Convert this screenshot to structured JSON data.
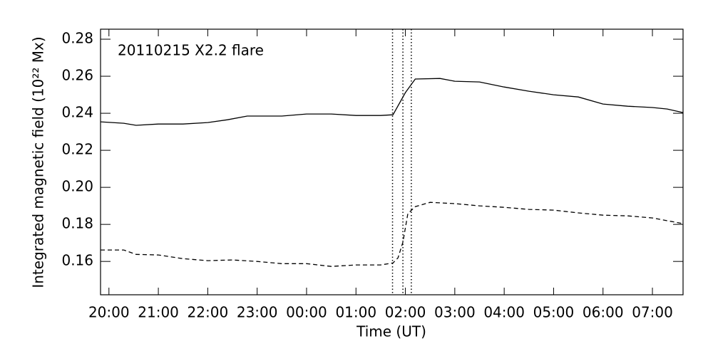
{
  "chart_data": {
    "type": "line",
    "annotation": "20110215 X2.2 flare",
    "xlabel": "Time (UT)",
    "ylabel": "Integrated magnetic field (10²² Mx)",
    "xlim": [
      -0.17,
      11.62
    ],
    "xticks": [
      {
        "value": 0,
        "label": "20:00"
      },
      {
        "value": 1,
        "label": "21:00"
      },
      {
        "value": 2,
        "label": "22:00"
      },
      {
        "value": 3,
        "label": "23:00"
      },
      {
        "value": 4,
        "label": "00:00"
      },
      {
        "value": 5,
        "label": "01:00"
      },
      {
        "value": 6,
        "label": "02:00"
      },
      {
        "value": 7,
        "label": "03:00"
      },
      {
        "value": 8,
        "label": "04:00"
      },
      {
        "value": 9,
        "label": "05:00"
      },
      {
        "value": 10,
        "label": "06:00"
      },
      {
        "value": 11,
        "label": "07:00"
      }
    ],
    "ylim": [
      0.142,
      0.2854
    ],
    "yticks": [
      {
        "value": 0.16,
        "label": "0.16"
      },
      {
        "value": 0.18,
        "label": "0.18"
      },
      {
        "value": 0.2,
        "label": "0.20"
      },
      {
        "value": 0.22,
        "label": "0.22"
      },
      {
        "value": 0.24,
        "label": "0.24"
      },
      {
        "value": 0.26,
        "label": "0.26"
      },
      {
        "value": 0.28,
        "label": "0.28"
      }
    ],
    "vlines": [
      5.74,
      5.95,
      6.12
    ],
    "series": [
      {
        "color": "#000000",
        "linestyle": "solid",
        "x": [
          -0.17,
          0.3,
          0.55,
          1.0,
          1.5,
          2.0,
          2.4,
          2.8,
          3.5,
          4.0,
          4.5,
          5.0,
          5.5,
          5.75,
          6.0,
          6.2,
          6.7,
          7.0,
          7.5,
          8.0,
          8.5,
          9.0,
          9.5,
          10.0,
          10.5,
          11.0,
          11.3,
          11.62
        ],
        "values": [
          0.2354,
          0.2346,
          0.2335,
          0.2342,
          0.2342,
          0.235,
          0.2365,
          0.2385,
          0.2385,
          0.2396,
          0.2396,
          0.2388,
          0.2388,
          0.2392,
          0.2512,
          0.2585,
          0.2588,
          0.2573,
          0.2569,
          0.2542,
          0.2519,
          0.25,
          0.2488,
          0.245,
          0.2438,
          0.2431,
          0.2423,
          0.2404
        ]
      },
      {
        "color": "#000000",
        "linestyle": "dashed",
        "x": [
          -0.17,
          0.3,
          0.55,
          1.0,
          1.5,
          2.0,
          2.5,
          3.0,
          3.5,
          4.0,
          4.5,
          5.0,
          5.5,
          5.75,
          5.85,
          5.95,
          6.05,
          6.2,
          6.5,
          7.0,
          7.5,
          8.0,
          8.5,
          9.0,
          9.5,
          10.0,
          10.5,
          11.0,
          11.62
        ],
        "values": [
          0.1662,
          0.1662,
          0.1638,
          0.1635,
          0.1615,
          0.1604,
          0.1608,
          0.16,
          0.1588,
          0.1588,
          0.1573,
          0.1581,
          0.1581,
          0.1592,
          0.1619,
          0.1704,
          0.1858,
          0.1896,
          0.1919,
          0.1912,
          0.19,
          0.1892,
          0.1881,
          0.1877,
          0.1862,
          0.185,
          0.1846,
          0.1835,
          0.1804
        ]
      }
    ]
  }
}
